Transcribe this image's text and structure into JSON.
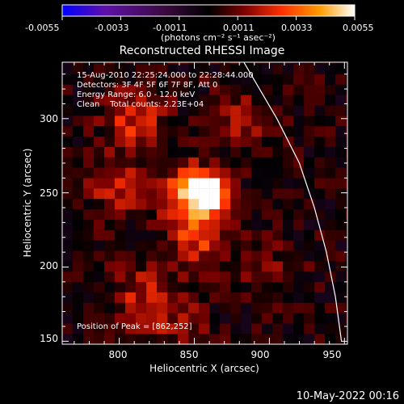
{
  "title": "Reconstructed RHESSI Image",
  "colorbar": {
    "tick_labels": [
      "-0.0055",
      "-0.0033",
      "-0.0011",
      "0.0011",
      "0.0033",
      "0.0055"
    ],
    "range": [
      -0.0055,
      0.0055
    ],
    "unit_label": "(photons cm⁻² s⁻¹ asec⁻²)",
    "colors": [
      "#0000ff",
      "#6010a8",
      "#3a0a40",
      "#000000",
      "#7a0000",
      "#ff3000",
      "#ff9a00",
      "#ffffff"
    ]
  },
  "annotations": {
    "time": "15-Aug-2010 22:25:24.000 to 22:28:44.000",
    "detectors": "Detectors: 3F 4F 5F 6F 7F 8F, Att 0",
    "energy": "Energy Range: 6.0 - 12.0 keV",
    "clean": "Clean    Total counts: 2.23E+04",
    "peak": "Position of Peak = [862,252]"
  },
  "footer_date": "10-May-2022 00:16",
  "chart_data": {
    "type": "heatmap",
    "title": "Reconstructed RHESSI Image",
    "xlabel": "Heliocentric X (arcsec)",
    "ylabel": "Heliocentric Y (arcsec)",
    "xlim": [
      762,
      952
    ],
    "ylim": [
      148,
      338
    ],
    "x_ticks": [
      800,
      850,
      900,
      950
    ],
    "y_ticks": [
      150,
      200,
      250,
      300
    ],
    "value_range": [
      -0.0055,
      0.0055
    ],
    "peak_position": [
      862,
      252
    ],
    "peak_value": 0.0055,
    "sources": [
      {
        "x": 860,
        "y": 250,
        "value": 0.0055
      },
      {
        "x": 846,
        "y": 248,
        "value": 0.0033
      },
      {
        "x": 810,
        "y": 300,
        "value": 0.0022
      },
      {
        "x": 798,
        "y": 255,
        "value": 0.0018
      },
      {
        "x": 815,
        "y": 180,
        "value": 0.0018
      },
      {
        "x": 852,
        "y": 218,
        "value": 0.0022
      },
      {
        "x": 880,
        "y": 300,
        "value": 0.0015
      },
      {
        "x": 840,
        "y": 160,
        "value": 0.0012
      },
      {
        "x": 900,
        "y": 200,
        "value": 0.001
      }
    ],
    "limb_curve": [
      [
        883,
        338
      ],
      [
        905,
        300
      ],
      [
        920,
        270
      ],
      [
        930,
        240
      ],
      [
        938,
        210
      ],
      [
        944,
        180
      ],
      [
        948,
        150
      ]
    ]
  }
}
